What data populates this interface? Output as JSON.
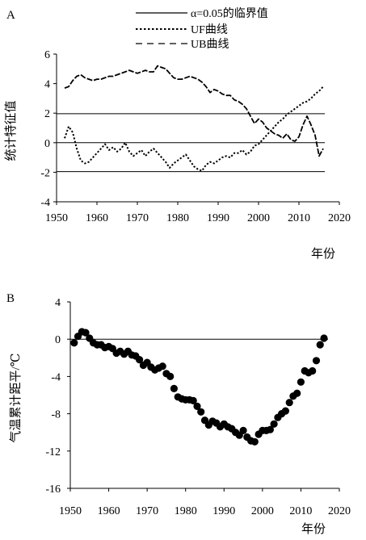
{
  "chart_data": [
    {
      "panel_label": "A",
      "type": "line",
      "ylabel": "统计特征值",
      "xlabel": "年份",
      "xlim": [
        1950,
        2020
      ],
      "ylim": [
        -4,
        6
      ],
      "xticks": [
        1950,
        1960,
        1970,
        1980,
        1990,
        2000,
        2010,
        2020
      ],
      "yticks": [
        -4,
        -2,
        0,
        2,
        4,
        6
      ],
      "legend_position": "top-right",
      "legend": [
        "α=0.05的临界值",
        "UF曲线",
        "UB曲线"
      ],
      "critical_lines": [
        1.96,
        0,
        -1.96
      ],
      "series": [
        {
          "name": "UF曲线",
          "style": "dotted",
          "x": [
            1952,
            1953,
            1954,
            1955,
            1956,
            1957,
            1958,
            1959,
            1960,
            1961,
            1962,
            1963,
            1964,
            1965,
            1966,
            1967,
            1968,
            1969,
            1970,
            1971,
            1972,
            1973,
            1974,
            1975,
            1976,
            1977,
            1978,
            1979,
            1980,
            1981,
            1982,
            1983,
            1984,
            1985,
            1986,
            1987,
            1988,
            1989,
            1990,
            1991,
            1992,
            1993,
            1994,
            1995,
            1996,
            1997,
            1998,
            1999,
            2000,
            2001,
            2002,
            2003,
            2004,
            2005,
            2006,
            2007,
            2008,
            2009,
            2010,
            2011,
            2012,
            2013,
            2014,
            2015,
            2016
          ],
          "y": [
            0.3,
            1.1,
            0.7,
            -0.4,
            -1.2,
            -1.4,
            -1.3,
            -1.0,
            -0.7,
            -0.4,
            -0.1,
            -0.5,
            -0.3,
            -0.6,
            -0.4,
            0.0,
            -0.6,
            -0.9,
            -0.7,
            -0.5,
            -0.9,
            -0.6,
            -0.4,
            -0.7,
            -1.0,
            -1.3,
            -1.7,
            -1.4,
            -1.2,
            -1.0,
            -0.8,
            -1.2,
            -1.6,
            -1.8,
            -1.9,
            -1.5,
            -1.3,
            -1.4,
            -1.2,
            -1.0,
            -0.9,
            -1.0,
            -0.7,
            -0.7,
            -0.5,
            -0.8,
            -0.6,
            -0.2,
            -0.1,
            0.2,
            0.5,
            0.8,
            1.1,
            1.4,
            1.6,
            1.9,
            2.1,
            2.3,
            2.5,
            2.7,
            2.8,
            3.0,
            3.3,
            3.5,
            3.8
          ]
        },
        {
          "name": "UB曲线",
          "style": "dashed",
          "x": [
            1952,
            1953,
            1954,
            1955,
            1956,
            1957,
            1958,
            1959,
            1960,
            1961,
            1962,
            1963,
            1964,
            1965,
            1966,
            1967,
            1968,
            1969,
            1970,
            1971,
            1972,
            1973,
            1974,
            1975,
            1976,
            1977,
            1978,
            1979,
            1980,
            1981,
            1982,
            1983,
            1984,
            1985,
            1986,
            1987,
            1988,
            1989,
            1990,
            1991,
            1992,
            1993,
            1994,
            1995,
            1996,
            1997,
            1998,
            1999,
            2000,
            2001,
            2002,
            2003,
            2004,
            2005,
            2006,
            2007,
            2008,
            2009,
            2010,
            2011,
            2012,
            2013,
            2014,
            2015,
            2016
          ],
          "y": [
            3.7,
            3.8,
            4.2,
            4.5,
            4.6,
            4.4,
            4.3,
            4.2,
            4.3,
            4.3,
            4.4,
            4.5,
            4.5,
            4.6,
            4.7,
            4.8,
            4.9,
            4.8,
            4.7,
            4.8,
            4.9,
            4.8,
            4.8,
            5.2,
            5.1,
            5.0,
            4.7,
            4.4,
            4.3,
            4.3,
            4.4,
            4.5,
            4.4,
            4.3,
            4.1,
            3.8,
            3.4,
            3.6,
            3.5,
            3.3,
            3.2,
            3.2,
            2.9,
            2.8,
            2.6,
            2.3,
            1.8,
            1.3,
            1.6,
            1.4,
            1.0,
            0.8,
            0.6,
            0.5,
            0.3,
            0.6,
            0.2,
            0.1,
            0.4,
            1.2,
            1.8,
            1.2,
            0.5,
            -0.9,
            -0.4
          ]
        }
      ]
    },
    {
      "panel_label": "B",
      "type": "scatter",
      "ylabel": "气温累计距平/℃",
      "xlabel": "年份",
      "xlim": [
        1950,
        2020
      ],
      "ylim": [
        -16,
        4
      ],
      "xticks": [
        1950,
        1960,
        1970,
        1980,
        1990,
        2000,
        2010,
        2020
      ],
      "yticks": [
        -16,
        -12,
        -8,
        -4,
        0,
        4
      ],
      "reference_line": 0,
      "series": [
        {
          "name": "",
          "x": [
            1951,
            1952,
            1953,
            1954,
            1955,
            1956,
            1957,
            1958,
            1959,
            1960,
            1961,
            1962,
            1963,
            1964,
            1965,
            1966,
            1967,
            1968,
            1969,
            1970,
            1971,
            1972,
            1973,
            1974,
            1975,
            1976,
            1977,
            1978,
            1979,
            1980,
            1981,
            1982,
            1983,
            1984,
            1985,
            1986,
            1987,
            1988,
            1989,
            1990,
            1991,
            1992,
            1993,
            1994,
            1995,
            1996,
            1997,
            1998,
            1999,
            2000,
            2001,
            2002,
            2003,
            2004,
            2005,
            2006,
            2007,
            2008,
            2009,
            2010,
            2011,
            2012,
            2013,
            2014,
            2015,
            2016
          ],
          "y": [
            -0.4,
            0.3,
            0.8,
            0.7,
            0.1,
            -0.4,
            -0.6,
            -0.6,
            -0.9,
            -0.8,
            -1.0,
            -1.5,
            -1.3,
            -1.6,
            -1.3,
            -1.7,
            -1.8,
            -2.2,
            -2.8,
            -2.5,
            -3.0,
            -3.3,
            -3.1,
            -2.9,
            -3.7,
            -4.0,
            -5.3,
            -6.2,
            -6.4,
            -6.5,
            -6.5,
            -6.6,
            -7.2,
            -7.8,
            -8.7,
            -9.2,
            -8.8,
            -9.0,
            -9.4,
            -9.1,
            -9.4,
            -9.6,
            -10.0,
            -10.3,
            -9.8,
            -10.5,
            -10.9,
            -11.0,
            -10.2,
            -9.8,
            -9.8,
            -9.7,
            -9.1,
            -8.4,
            -8.0,
            -7.7,
            -6.8,
            -6.1,
            -5.8,
            -4.6,
            -3.4,
            -3.6,
            -3.4,
            -2.3,
            -0.6,
            0.1
          ]
        }
      ]
    }
  ]
}
